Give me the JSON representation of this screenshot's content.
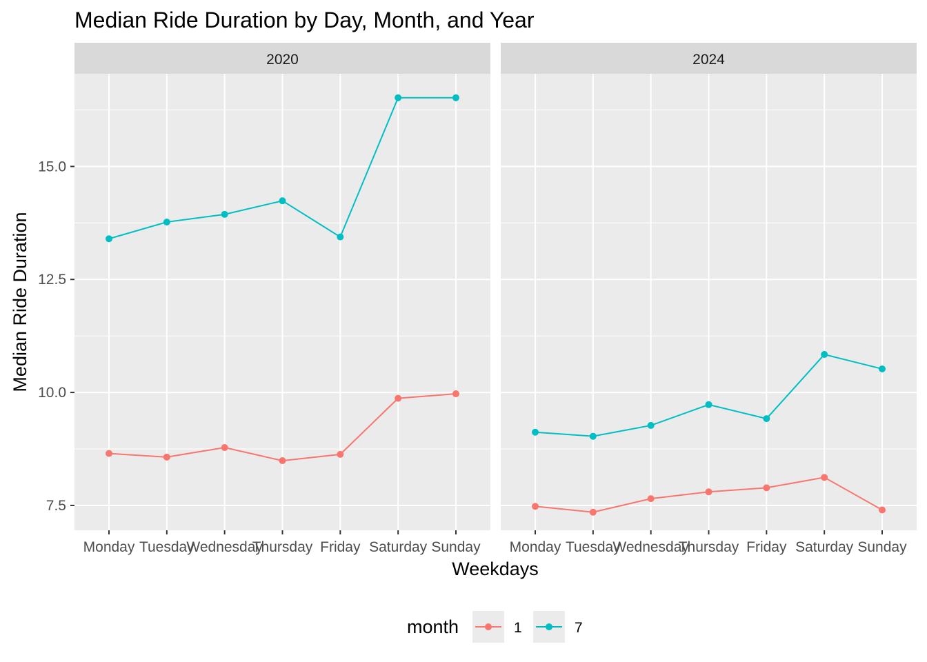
{
  "chart_data": {
    "type": "line",
    "title": "Median Ride Duration by Day, Month, and Year",
    "xlabel": "Weekdays",
    "ylabel": "Median Ride Duration",
    "categories": [
      "Monday",
      "Tuesday",
      "Wednesday",
      "Thursday",
      "Friday",
      "Saturday",
      "Sunday"
    ],
    "yticks": [
      7.5,
      10.0,
      12.5,
      15.0
    ],
    "ytick_labels": [
      "7.5",
      "10.0",
      "12.5",
      "15.0"
    ],
    "ylim": [
      6.95,
      17.05
    ],
    "grid": true,
    "legend": {
      "title": "month",
      "position": "bottom"
    },
    "panels": [
      {
        "label": "2020",
        "series": [
          {
            "name": "1",
            "color": "#F8766D",
            "values": [
              8.65,
              8.57,
              8.78,
              8.49,
              8.63,
              9.87,
              9.97
            ]
          },
          {
            "name": "7",
            "color": "#00BFC4",
            "values": [
              13.4,
              13.77,
              13.94,
              14.24,
              13.44,
              16.52,
              16.52
            ]
          }
        ]
      },
      {
        "label": "2024",
        "series": [
          {
            "name": "1",
            "color": "#F8766D",
            "values": [
              7.48,
              7.35,
              7.65,
              7.8,
              7.89,
              8.12,
              7.4
            ]
          },
          {
            "name": "7",
            "color": "#00BFC4",
            "values": [
              9.12,
              9.03,
              9.27,
              9.73,
              9.42,
              10.84,
              10.52
            ]
          }
        ]
      }
    ]
  }
}
